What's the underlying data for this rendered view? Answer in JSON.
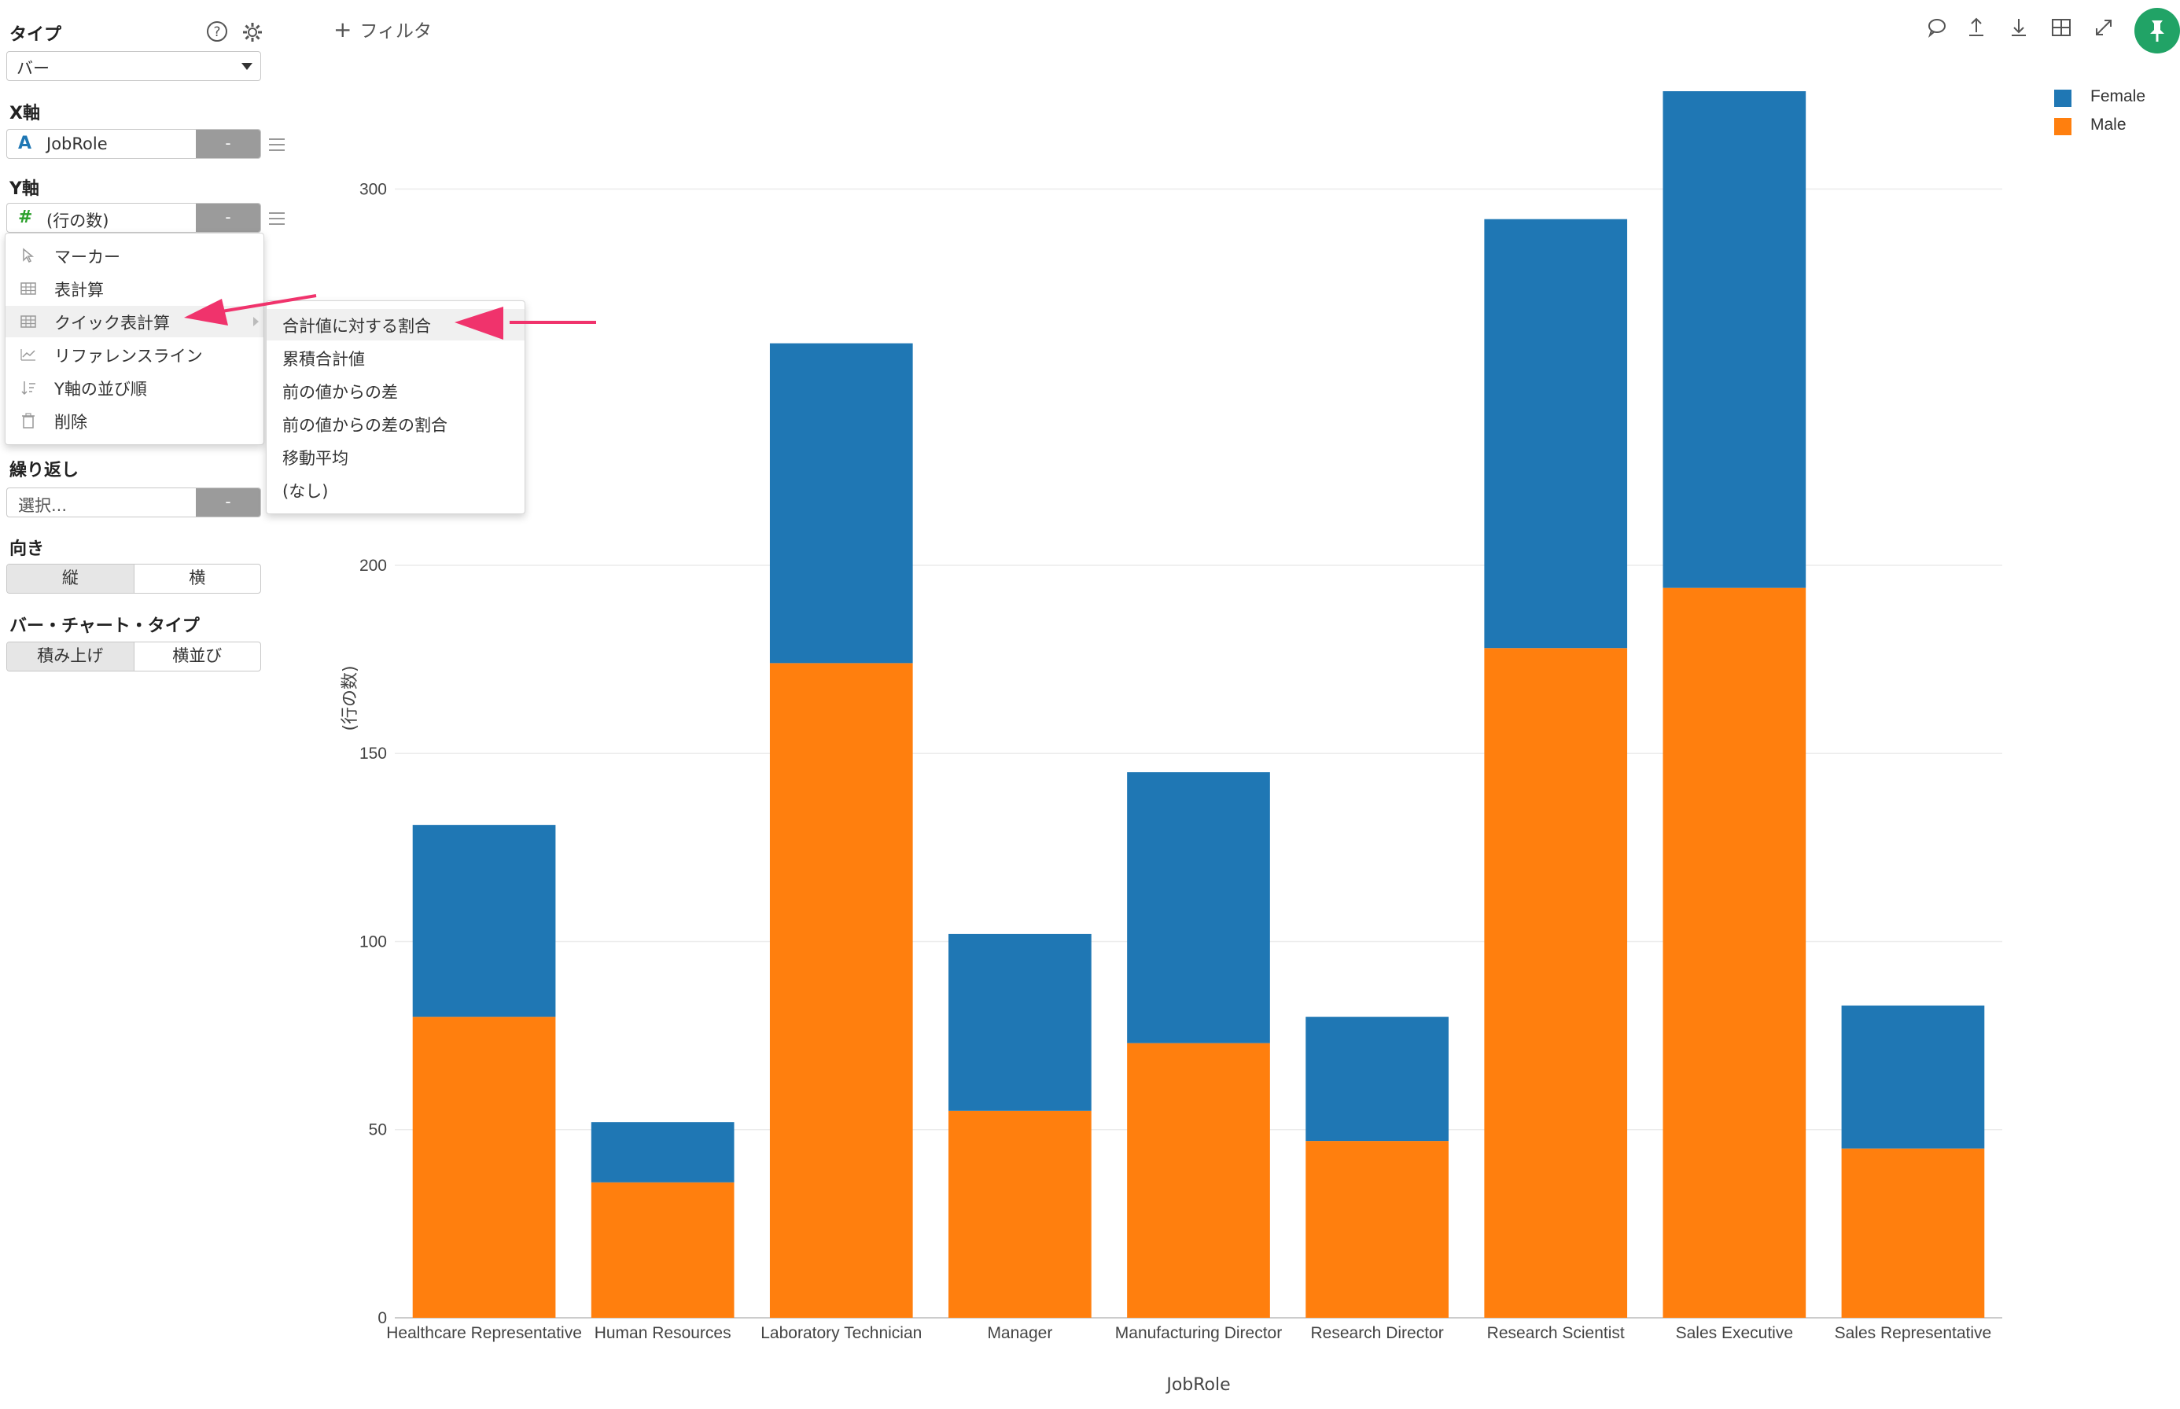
{
  "sidebar": {
    "type_label": "タイプ",
    "type_value": "バー",
    "x_label": "X軸",
    "x_field_type": "A",
    "x_field": "JobRole",
    "x_btn": "-",
    "y_label": "Y軸",
    "y_field_type": "#",
    "y_field": "(行の数)",
    "y_btn": "-",
    "repeat_label": "繰り返し",
    "repeat_placeholder": "選択...",
    "repeat_btn": "-",
    "orientation_label": "向き",
    "orientation_options": [
      "縦",
      "横"
    ],
    "bar_type_label": "バー・チャート・タイプ",
    "bar_type_options": [
      "積み上げ",
      "横並び"
    ]
  },
  "y_menu": {
    "items": [
      {
        "label": "マーカー",
        "icon": "cursor-icon"
      },
      {
        "label": "表計算",
        "icon": "table-icon"
      },
      {
        "label": "クイック表計算",
        "icon": "table-icon"
      },
      {
        "label": "リファレンスライン",
        "icon": "line-chart-icon"
      },
      {
        "label": "Y軸の並び順",
        "icon": "sort-icon"
      },
      {
        "label": "削除",
        "icon": "trash-icon"
      }
    ]
  },
  "quick_calc_menu": {
    "items": [
      "合計値に対する割合",
      "累積合計値",
      "前の値からの差",
      "前の値からの差の割合",
      "移動平均",
      "(なし)"
    ]
  },
  "topbar": {
    "filter_label": "フィルタ"
  },
  "colors": {
    "female": "#1f77b4",
    "male": "#ff7f0e",
    "annotation_arrow": "#f0336c",
    "pin": "#21a366"
  },
  "chart_data": {
    "type": "bar",
    "stacked": true,
    "categories": [
      "Healthcare Representative",
      "Human Resources",
      "Laboratory Technician",
      "Manager",
      "Manufacturing Director",
      "Research Director",
      "Research Scientist",
      "Sales Executive",
      "Sales Representative"
    ],
    "series": [
      {
        "name": "Male",
        "values": [
          80,
          36,
          174,
          55,
          73,
          47,
          178,
          194,
          45
        ]
      },
      {
        "name": "Female",
        "values": [
          51,
          16,
          85,
          47,
          72,
          33,
          114,
          132,
          38
        ]
      }
    ],
    "xlabel": "JobRole",
    "ylabel": "(行の数)",
    "ylim": [
      0,
      326
    ],
    "yticks": [
      0,
      50,
      100,
      150,
      200,
      300
    ],
    "grid": true,
    "legend_position": "top-right"
  }
}
